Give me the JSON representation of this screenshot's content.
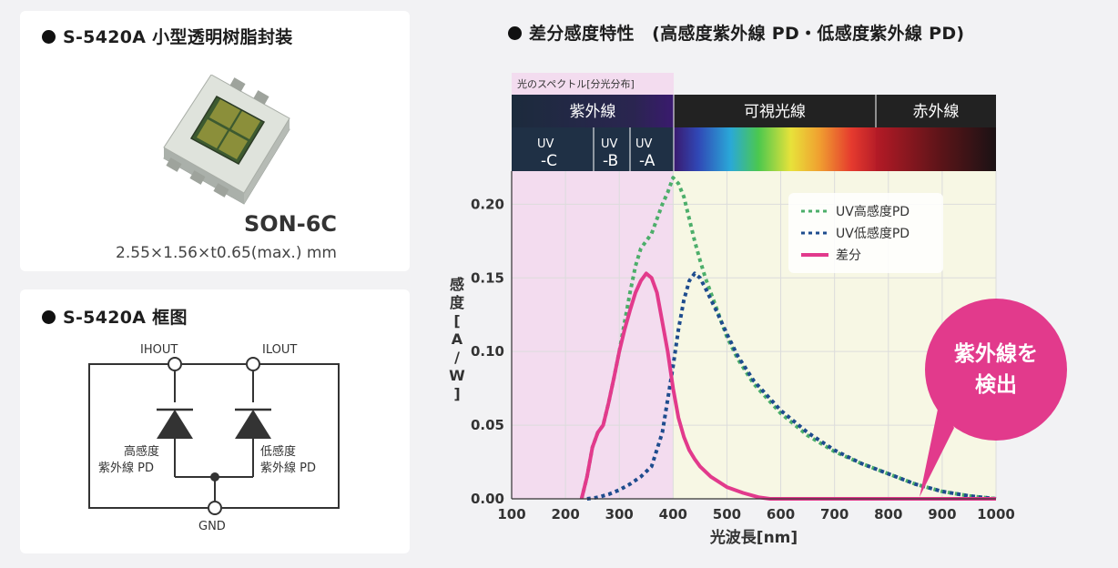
{
  "package_card": {
    "heading": "S-5420A 小型透明树脂封装",
    "package_name": "SON-6C",
    "dimensions": "2.55×1.56×t0.65(max.) mm"
  },
  "block_card": {
    "heading": "S-5420A 框图",
    "pin_ihout": "IHOUT",
    "pin_ilout": "ILOUT",
    "pin_gnd": "GND",
    "diode_high_line1": "高感度",
    "diode_high_line2": "紫外線 PD",
    "diode_low_line1": "低感度",
    "diode_low_line2": "紫外線 PD"
  },
  "chart_card": {
    "heading": "差分感度特性　(高感度紫外線 PD・低感度紫外線 PD)",
    "spectrum_caption": "光のスペクトル[分光分布]",
    "band_uv": "紫外線",
    "band_visible": "可視光線",
    "band_ir": "赤外線",
    "uvc_top": "UV",
    "uvc_bottom": "-C",
    "uvb_top": "UV",
    "uvb_bottom": "-B",
    "uva_top": "UV",
    "uva_bottom": "-A",
    "callout_line1": "紫外線を",
    "callout_line2": "検出",
    "y_label_chars": [
      "感",
      "度",
      "[",
      "A",
      "/",
      "W",
      "]"
    ]
  },
  "colors": {
    "high_pd": "#4cae6a",
    "low_pd": "#1e4c8e",
    "diff": "#e23a8c",
    "uv_region": "#f3dcef",
    "visible_region": "#f7f7e4",
    "band_dark": "#1f3045"
  },
  "chart_data": {
    "type": "line",
    "xlabel": "光波長[nm]",
    "ylabel": "感度[A/W]",
    "xlim": [
      100,
      1000
    ],
    "ylim": [
      0,
      0.22
    ],
    "x_ticks": [
      "100",
      "200",
      "300",
      "400",
      "500",
      "600",
      "700",
      "800",
      "900",
      "1000"
    ],
    "y_ticks": [
      "0.00",
      "0.05",
      "0.10",
      "0.15",
      "0.20"
    ],
    "grid": true,
    "legend_position": "top-right",
    "series": [
      {
        "name": "UV高感度PD",
        "style": "dotted",
        "x": [
          230,
          240,
          250,
          260,
          270,
          280,
          290,
          300,
          310,
          320,
          330,
          340,
          350,
          360,
          370,
          380,
          390,
          400,
          410,
          420,
          430,
          440,
          450,
          460,
          480,
          500,
          520,
          550,
          600,
          650,
          700,
          750,
          800,
          850,
          900,
          950,
          1000
        ],
        "values": [
          0.0,
          0.015,
          0.035,
          0.045,
          0.05,
          0.065,
          0.082,
          0.1,
          0.12,
          0.14,
          0.158,
          0.17,
          0.175,
          0.18,
          0.19,
          0.2,
          0.208,
          0.218,
          0.214,
          0.205,
          0.19,
          0.175,
          0.162,
          0.15,
          0.13,
          0.11,
          0.095,
          0.078,
          0.058,
          0.043,
          0.032,
          0.024,
          0.017,
          0.01,
          0.005,
          0.002,
          0.0
        ]
      },
      {
        "name": "UV低感度PD",
        "style": "dotted",
        "x": [
          240,
          260,
          280,
          300,
          320,
          340,
          360,
          380,
          400,
          410,
          420,
          430,
          440,
          450,
          460,
          480,
          500,
          520,
          550,
          600,
          650,
          700,
          750,
          800,
          850,
          900,
          950,
          1000
        ],
        "values": [
          0.0,
          0.001,
          0.003,
          0.006,
          0.01,
          0.015,
          0.022,
          0.045,
          0.09,
          0.115,
          0.135,
          0.148,
          0.153,
          0.15,
          0.143,
          0.128,
          0.112,
          0.097,
          0.08,
          0.06,
          0.045,
          0.033,
          0.024,
          0.017,
          0.01,
          0.005,
          0.002,
          0.0
        ]
      },
      {
        "name": "差分",
        "style": "solid",
        "x": [
          230,
          240,
          250,
          260,
          270,
          280,
          290,
          300,
          310,
          320,
          330,
          340,
          350,
          360,
          370,
          380,
          390,
          400,
          410,
          420,
          430,
          440,
          450,
          470,
          500,
          530,
          560,
          580,
          600,
          1000
        ],
        "values": [
          0.0,
          0.015,
          0.035,
          0.045,
          0.05,
          0.065,
          0.082,
          0.1,
          0.115,
          0.128,
          0.14,
          0.148,
          0.153,
          0.15,
          0.14,
          0.12,
          0.1,
          0.075,
          0.055,
          0.042,
          0.033,
          0.027,
          0.022,
          0.015,
          0.008,
          0.004,
          0.001,
          0.0,
          0.0,
          0.0
        ]
      }
    ]
  }
}
